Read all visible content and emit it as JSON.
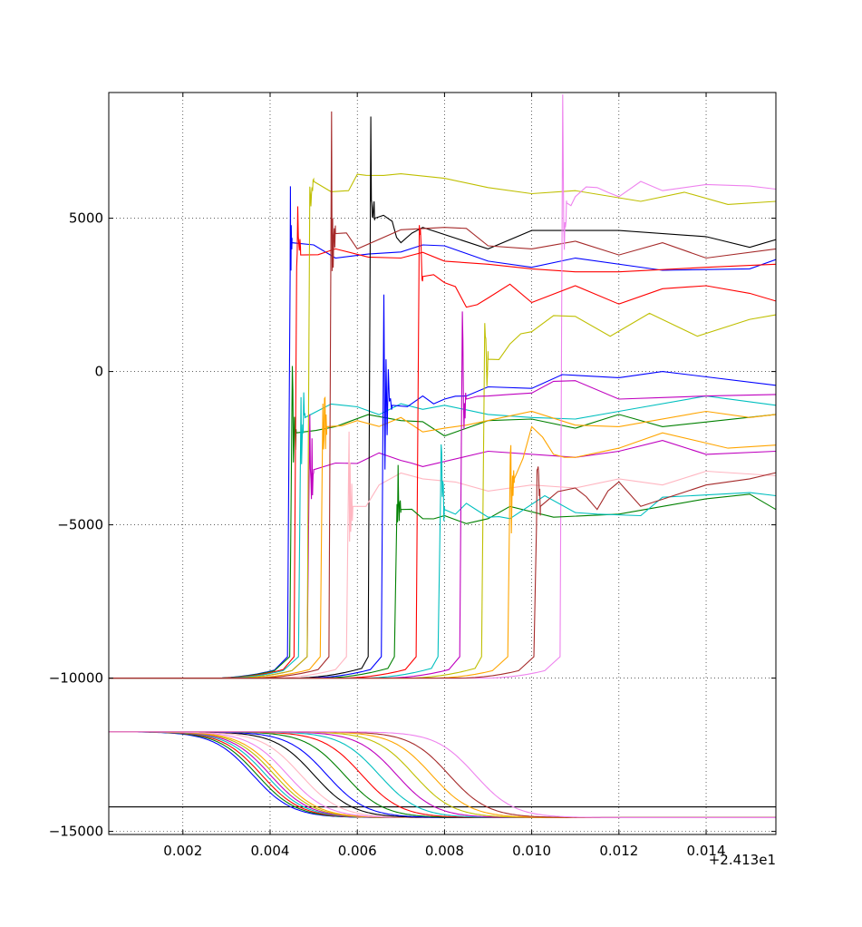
{
  "chart_data": {
    "type": "line",
    "title": "",
    "xlabel": "",
    "ylabel": "",
    "x_offset_label": "+2.413e1",
    "xlim": [
      0.0003,
      0.0156
    ],
    "ylim": [
      -15100,
      9100
    ],
    "grid": true,
    "x_ticks": [
      "0.002",
      "0.004",
      "0.006",
      "0.008",
      "0.010",
      "0.012",
      "0.014"
    ],
    "x_tick_values": [
      0.002,
      0.004,
      0.006,
      0.008,
      0.01,
      0.012,
      0.014
    ],
    "y_ticks": [
      "5000",
      "0",
      "−5000",
      "−10000",
      "−15000"
    ],
    "y_tick_values": [
      5000,
      0,
      -5000,
      -10000,
      -15000
    ],
    "colors": [
      "#0000ff",
      "#008000",
      "#ff0000",
      "#00bfbf",
      "#bf00bf",
      "#bfbf00",
      "#000000",
      "#ffa500",
      "#a52a2a",
      "#ee82ee",
      "#ffb6c1"
    ],
    "reference_line": {
      "y": -14200,
      "color": "#000000"
    },
    "series": [
      {
        "color": "#0000ff",
        "jump_x": 0.00445,
        "upper": [
          [
            0.0045,
            4200
          ],
          [
            0.0055,
            3700
          ],
          [
            0.007,
            3900
          ],
          [
            0.008,
            4100
          ],
          [
            0.009,
            3600
          ],
          [
            0.01,
            3400
          ],
          [
            0.011,
            3700
          ],
          [
            0.013,
            3300
          ],
          [
            0.015,
            3350
          ],
          [
            0.0156,
            3650
          ]
        ]
      },
      {
        "color": "#008000",
        "jump_x": 0.0045,
        "upper": [
          [
            0.0046,
            -2000
          ],
          [
            0.0055,
            -1800
          ],
          [
            0.007,
            -1600
          ],
          [
            0.008,
            -2100
          ],
          [
            0.009,
            -1600
          ],
          [
            0.01,
            -1550
          ],
          [
            0.011,
            -1850
          ],
          [
            0.012,
            -1400
          ],
          [
            0.013,
            -1800
          ],
          [
            0.0156,
            -1400
          ]
        ]
      },
      {
        "color": "#ff0000",
        "jump_x": 0.0046,
        "upper": [
          [
            0.0047,
            3800
          ],
          [
            0.0055,
            4000
          ],
          [
            0.007,
            3700
          ],
          [
            0.008,
            3600
          ],
          [
            0.009,
            3500
          ],
          [
            0.01,
            3350
          ],
          [
            0.011,
            3250
          ],
          [
            0.012,
            3250
          ],
          [
            0.014,
            3400
          ],
          [
            0.0156,
            3500
          ]
        ]
      },
      {
        "color": "#00bfbf",
        "jump_x": 0.0047,
        "upper": [
          [
            0.0048,
            -1500
          ],
          [
            0.006,
            -1150
          ],
          [
            0.007,
            -1050
          ],
          [
            0.008,
            -1100
          ],
          [
            0.009,
            -1400
          ],
          [
            0.01,
            -1500
          ],
          [
            0.011,
            -1550
          ],
          [
            0.012,
            -1300
          ],
          [
            0.014,
            -800
          ],
          [
            0.0156,
            -1100
          ]
        ]
      },
      {
        "color": "#bf00bf",
        "jump_x": 0.0049,
        "upper": [
          [
            0.005,
            -3200
          ],
          [
            0.006,
            -3000
          ],
          [
            0.007,
            -2900
          ],
          [
            0.0075,
            -3100
          ],
          [
            0.009,
            -2600
          ],
          [
            0.011,
            -2800
          ],
          [
            0.012,
            -2600
          ],
          [
            0.013,
            -2250
          ],
          [
            0.014,
            -2700
          ],
          [
            0.0156,
            -2600
          ]
        ]
      },
      {
        "color": "#bfbf00",
        "jump_x": 0.0049,
        "upper": [
          [
            0.005,
            6200
          ],
          [
            0.0058,
            5900
          ],
          [
            0.0062,
            6400
          ],
          [
            0.007,
            6450
          ],
          [
            0.008,
            6300
          ],
          [
            0.009,
            6000
          ],
          [
            0.01,
            5800
          ],
          [
            0.011,
            5900
          ],
          [
            0.0125,
            5550
          ],
          [
            0.0135,
            5850
          ],
          [
            0.0145,
            5450
          ],
          [
            0.0156,
            5550
          ]
        ]
      },
      {
        "color": "#000000",
        "jump_x": 0.0063,
        "upper": [
          [
            0.0064,
            5000
          ],
          [
            0.0068,
            4900
          ],
          [
            0.007,
            4200
          ],
          [
            0.0075,
            4700
          ],
          [
            0.009,
            4000
          ],
          [
            0.01,
            4600
          ],
          [
            0.012,
            4600
          ],
          [
            0.014,
            4400
          ],
          [
            0.015,
            4050
          ],
          [
            0.0156,
            4300
          ]
        ]
      },
      {
        "color": "#ffa500",
        "jump_x": 0.0052,
        "upper": [
          [
            0.0053,
            -1800
          ],
          [
            0.006,
            -1600
          ],
          [
            0.007,
            -1500
          ],
          [
            0.008,
            -1850
          ],
          [
            0.0085,
            -1750
          ],
          [
            0.01,
            -1300
          ],
          [
            0.011,
            -1750
          ],
          [
            0.012,
            -1800
          ],
          [
            0.014,
            -1300
          ],
          [
            0.015,
            -1500
          ],
          [
            0.0156,
            -1400
          ]
        ]
      },
      {
        "color": "#a52a2a",
        "jump_x": 0.0054,
        "upper": [
          [
            0.0055,
            4500
          ],
          [
            0.006,
            4000
          ],
          [
            0.008,
            4700
          ],
          [
            0.009,
            4100
          ],
          [
            0.01,
            4000
          ],
          [
            0.011,
            4250
          ],
          [
            0.012,
            3800
          ],
          [
            0.013,
            4200
          ],
          [
            0.014,
            3700
          ],
          [
            0.0156,
            4000
          ]
        ]
      },
      {
        "color": "#ee82ee",
        "jump_x": 0.0107,
        "upper": [
          [
            0.0108,
            5500
          ],
          [
            0.011,
            5700
          ],
          [
            0.0115,
            6000
          ],
          [
            0.012,
            5700
          ],
          [
            0.0125,
            6200
          ],
          [
            0.013,
            5900
          ],
          [
            0.014,
            6100
          ],
          [
            0.015,
            6050
          ],
          [
            0.0156,
            5950
          ]
        ]
      },
      {
        "color": "#ffb6c1",
        "jump_x": 0.0058,
        "upper": [
          [
            0.0059,
            -4400
          ],
          [
            0.0065,
            -3700
          ],
          [
            0.0075,
            -3500
          ],
          [
            0.009,
            -3900
          ],
          [
            0.01,
            -3700
          ],
          [
            0.011,
            -3800
          ],
          [
            0.012,
            -3500
          ],
          [
            0.013,
            -3700
          ],
          [
            0.014,
            -3250
          ],
          [
            0.0156,
            -3400
          ]
        ]
      },
      {
        "color": "#0000ff",
        "jump_x": 0.0066,
        "upper": [
          [
            0.0068,
            -1100
          ],
          [
            0.0075,
            -800
          ],
          [
            0.008,
            -900
          ],
          [
            0.0085,
            -800
          ],
          [
            0.009,
            -500
          ],
          [
            0.01,
            -550
          ],
          [
            0.0107,
            -100
          ],
          [
            0.012,
            -200
          ],
          [
            0.013,
            0
          ],
          [
            0.0156,
            -450
          ]
        ]
      },
      {
        "color": "#bfbf00",
        "jump_x": 0.0089,
        "upper": [
          [
            0.009,
            400
          ],
          [
            0.0095,
            900
          ],
          [
            0.01,
            1300
          ],
          [
            0.011,
            1800
          ],
          [
            0.0118,
            1150
          ],
          [
            0.0127,
            1900
          ],
          [
            0.0138,
            1150
          ],
          [
            0.015,
            1700
          ],
          [
            0.0156,
            1850
          ]
        ]
      },
      {
        "color": "#ff0000",
        "jump_x": 0.0074,
        "upper": [
          [
            0.0075,
            3100
          ],
          [
            0.008,
            2900
          ],
          [
            0.0085,
            2100
          ],
          [
            0.009,
            2400
          ],
          [
            0.0095,
            2850
          ],
          [
            0.01,
            2250
          ],
          [
            0.011,
            2800
          ],
          [
            0.012,
            2200
          ],
          [
            0.013,
            2700
          ],
          [
            0.014,
            2800
          ],
          [
            0.015,
            2550
          ],
          [
            0.0156,
            2300
          ]
        ]
      },
      {
        "color": "#008000",
        "jump_x": 0.0069,
        "upper": [
          [
            0.007,
            -4500
          ],
          [
            0.0075,
            -4800
          ],
          [
            0.008,
            -4700
          ],
          [
            0.009,
            -4800
          ],
          [
            0.0095,
            -4400
          ],
          [
            0.0105,
            -4750
          ],
          [
            0.012,
            -4650
          ],
          [
            0.013,
            -4400
          ],
          [
            0.014,
            -4150
          ],
          [
            0.015,
            -4000
          ],
          [
            0.0156,
            -4500
          ]
        ]
      },
      {
        "color": "#00bfbf",
        "jump_x": 0.0079,
        "upper": [
          [
            0.008,
            -4500
          ],
          [
            0.0085,
            -4300
          ],
          [
            0.009,
            -4750
          ],
          [
            0.0095,
            -4800
          ],
          [
            0.0103,
            -4050
          ],
          [
            0.011,
            -4600
          ],
          [
            0.0115,
            -4650
          ],
          [
            0.0125,
            -4700
          ],
          [
            0.013,
            -4100
          ],
          [
            0.015,
            -3950
          ],
          [
            0.0156,
            -4050
          ]
        ]
      },
      {
        "color": "#bf00bf",
        "jump_x": 0.0084,
        "upper": [
          [
            0.0085,
            -900
          ],
          [
            0.009,
            -800
          ],
          [
            0.01,
            -700
          ],
          [
            0.011,
            -300
          ],
          [
            0.012,
            -900
          ],
          [
            0.013,
            -850
          ],
          [
            0.014,
            -800
          ],
          [
            0.0156,
            -750
          ]
        ]
      },
      {
        "color": "#ffa500",
        "jump_x": 0.0095,
        "upper": [
          [
            0.0096,
            -3500
          ],
          [
            0.01,
            -1800
          ],
          [
            0.0105,
            -2700
          ],
          [
            0.011,
            -2800
          ],
          [
            0.012,
            -2500
          ],
          [
            0.013,
            -2000
          ],
          [
            0.0145,
            -2500
          ],
          [
            0.0156,
            -2400
          ]
        ]
      },
      {
        "color": "#a52a2a",
        "jump_x": 0.0101,
        "upper": [
          [
            0.0102,
            -4400
          ],
          [
            0.011,
            -3800
          ],
          [
            0.0115,
            -4500
          ],
          [
            0.012,
            -3600
          ],
          [
            0.0125,
            -4400
          ],
          [
            0.014,
            -3700
          ],
          [
            0.015,
            -3500
          ],
          [
            0.0156,
            -3300
          ]
        ]
      }
    ],
    "lower_curves": [
      {
        "color": "#0000ff",
        "center": 0.0036
      },
      {
        "color": "#008000",
        "center": 0.0037
      },
      {
        "color": "#ff0000",
        "center": 0.0038
      },
      {
        "color": "#00bfbf",
        "center": 0.0039
      },
      {
        "color": "#bf00bf",
        "center": 0.004
      },
      {
        "color": "#bfbf00",
        "center": 0.0041
      },
      {
        "color": "#ffa500",
        "center": 0.0042
      },
      {
        "color": "#ee82ee",
        "center": 0.0044
      },
      {
        "color": "#ffb6c1",
        "center": 0.0047
      },
      {
        "color": "#000000",
        "center": 0.005
      },
      {
        "color": "#0000ff",
        "center": 0.0053
      },
      {
        "color": "#008000",
        "center": 0.0057
      },
      {
        "color": "#ff0000",
        "center": 0.0061
      },
      {
        "color": "#00bfbf",
        "center": 0.0065
      },
      {
        "color": "#bf00bf",
        "center": 0.0069
      },
      {
        "color": "#bfbf00",
        "center": 0.0073
      },
      {
        "color": "#ffa500",
        "center": 0.0077
      },
      {
        "color": "#a52a2a",
        "center": 0.0081
      },
      {
        "color": "#ee82ee",
        "center": 0.0087
      }
    ],
    "lower_start": -11750,
    "lower_end": -14550
  }
}
